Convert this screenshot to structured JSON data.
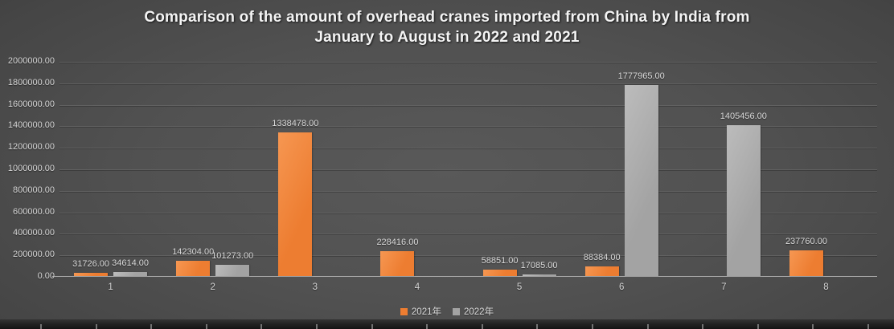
{
  "title_lines": [
    "Comparison of the amount of overhead cranes imported from China by India from",
    "January to August in 2022 and 2021"
  ],
  "chart_data": {
    "type": "bar",
    "title": "Comparison of the amount of overhead cranes imported from China by India from January to August in 2022 and 2021",
    "categories": [
      "1",
      "2",
      "3",
      "4",
      "5",
      "6",
      "7",
      "8"
    ],
    "series": [
      {
        "name": "2021年",
        "color": "#ED7D31",
        "color_light": "#F69752",
        "values": [
          31726,
          142304,
          1338478,
          228416,
          58851,
          88384,
          null,
          237760
        ]
      },
      {
        "name": "2022年",
        "color": "#A3A3A3",
        "color_light": "#BCBCBC",
        "values": [
          34614,
          101273,
          null,
          null,
          17085,
          1777965,
          1405456,
          null
        ]
      }
    ],
    "ylim": [
      0,
      2000000
    ],
    "ytick_step": 200000,
    "ytick_labels": [
      "0.00",
      "200000.00",
      "400000.00",
      "600000.00",
      "800000.00",
      "1000000.00",
      "1200000.00",
      "1400000.00",
      "1600000.00",
      "1800000.00",
      "2000000.00"
    ],
    "value_label_format": "#.00",
    "xlabel": "",
    "ylabel": "",
    "grid": "horizontal",
    "legend_position": "bottom",
    "data_labels_shown": [
      "31726.00",
      "34614.00",
      "142304.00",
      "101273.00",
      "1338478.00",
      "228416.00",
      "58851.00",
      "17085.00",
      "88384.00",
      "1777965.00",
      "1405456.00",
      "237760.00"
    ]
  },
  "style_colors": {
    "background_center": "#595959",
    "background_edge": "#1d1d1d",
    "gridline": "#616161",
    "axis_line": "#a9a9a9",
    "text": "#d9d9d9",
    "title_text": "#f4f4f4"
  }
}
